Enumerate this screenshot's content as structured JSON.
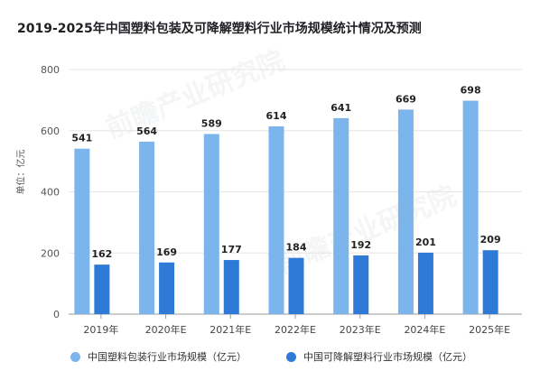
{
  "title": "2019-2025年中国塑料包装及可降解塑料行业市场规模统计情况及预测",
  "ylabel": "单位：亿元",
  "watermark": "前瞻产业研究院",
  "colors": {
    "series1": "#7cb5ec",
    "series2": "#2e7ad6",
    "grid": "#e6e6e6",
    "axis": "#9a9a9a"
  },
  "chart_data": {
    "type": "bar",
    "title": "2019-2025年中国塑料包装及可降解塑料行业市场规模统计情况及预测",
    "xlabel": "",
    "ylabel": "单位：亿元",
    "ylim": [
      0,
      800
    ],
    "yticks": [
      0,
      200,
      400,
      600,
      800
    ],
    "grid": true,
    "legend": "bottom",
    "categories": [
      "2019年",
      "2020年E",
      "2021年E",
      "2022年E",
      "2023年E",
      "2024年E",
      "2025年E"
    ],
    "series": [
      {
        "name": "中国塑料包装行业市场规模（亿元）",
        "values": [
          541,
          564,
          589,
          614,
          641,
          669,
          698
        ]
      },
      {
        "name": "中国可降解塑料行业市场规模（亿元）",
        "values": [
          162,
          169,
          177,
          184,
          192,
          201,
          209
        ]
      }
    ]
  }
}
